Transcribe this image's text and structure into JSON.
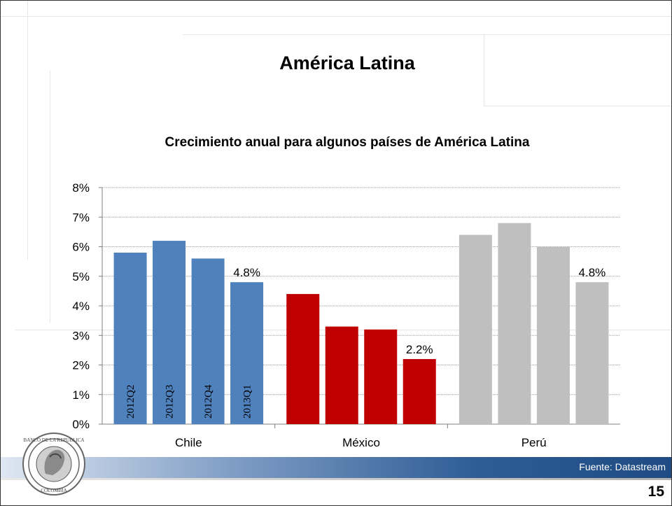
{
  "slide": {
    "title": "América Latina",
    "source": "Fuente: Datastream",
    "page_number": "15"
  },
  "logo": {
    "name": "Banco de la República Colombia seal",
    "text": "BANCO DE LA REPUBLICA COLOMBIA"
  },
  "colors": {
    "chile": "#4f81bd",
    "mexico": "#c00000",
    "peru": "#bfbfbf",
    "band": "#1f4a82"
  },
  "chart_data": {
    "type": "bar",
    "title": "Crecimiento anual para algunos países de América Latina",
    "xlabel": "",
    "ylabel": "",
    "ylim": [
      0,
      8
    ],
    "ytick_labels": [
      "0%",
      "1%",
      "2%",
      "3%",
      "4%",
      "5%",
      "6%",
      "7%",
      "8%"
    ],
    "grid": true,
    "legend": "none",
    "groups": [
      {
        "name": "Chile",
        "color": "#4f81bd",
        "bars": [
          {
            "period": "2012Q2",
            "value": 5.8
          },
          {
            "period": "2012Q3",
            "value": 6.2
          },
          {
            "period": "2012Q4",
            "value": 5.6
          },
          {
            "period": "2013Q1",
            "value": 4.8
          }
        ],
        "last_label": "4.8%"
      },
      {
        "name": "México",
        "color": "#c00000",
        "bars": [
          {
            "period": "2012Q2",
            "value": 4.4
          },
          {
            "period": "2012Q3",
            "value": 3.3
          },
          {
            "period": "2012Q4",
            "value": 3.2
          },
          {
            "period": "2013Q1",
            "value": 2.2
          }
        ],
        "last_label": "2.2%"
      },
      {
        "name": "Perú",
        "color": "#bfbfbf",
        "bars": [
          {
            "period": "2012Q2",
            "value": 6.4
          },
          {
            "period": "2012Q3",
            "value": 6.8
          },
          {
            "period": "2012Q4",
            "value": 6.0
          },
          {
            "period": "2013Q1",
            "value": 4.8
          }
        ],
        "last_label": "4.8%"
      }
    ],
    "period_labels_group": "Chile"
  }
}
